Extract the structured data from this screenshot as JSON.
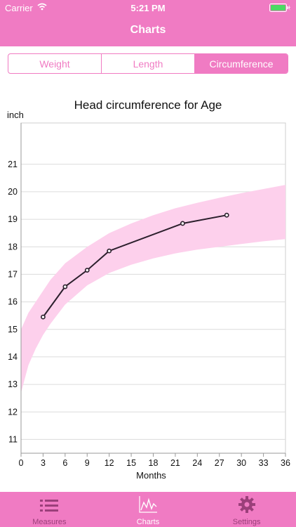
{
  "status_bar": {
    "carrier": "Carrier",
    "time": "5:21 PM"
  },
  "nav": {
    "title": "Charts"
  },
  "segments": [
    {
      "label": "Weight",
      "active": false
    },
    {
      "label": "Length",
      "active": false
    },
    {
      "label": "Circumference",
      "active": true
    }
  ],
  "chart_data": {
    "type": "line",
    "title": "Head circumference for Age",
    "ylabel": "inch",
    "xlabel": "Months",
    "xlim": [
      0,
      36
    ],
    "ylim": [
      10.5,
      22.5
    ],
    "xticks": [
      0,
      3,
      6,
      9,
      12,
      15,
      18,
      21,
      24,
      27,
      30,
      33,
      36
    ],
    "yticks": [
      11,
      12,
      13,
      14,
      15,
      16,
      17,
      18,
      19,
      20,
      21
    ],
    "grid": true,
    "band": {
      "x": [
        0,
        1,
        2,
        3,
        4,
        6,
        9,
        12,
        15,
        18,
        21,
        24,
        27,
        30,
        33,
        36
      ],
      "upper": [
        15.0,
        15.6,
        16.0,
        16.4,
        16.8,
        17.4,
        18.0,
        18.5,
        18.85,
        19.15,
        19.4,
        19.6,
        19.78,
        19.95,
        20.1,
        20.25
      ],
      "lower": [
        12.7,
        13.7,
        14.3,
        14.8,
        15.2,
        15.9,
        16.6,
        17.05,
        17.35,
        17.58,
        17.76,
        17.9,
        18.0,
        18.1,
        18.2,
        18.28
      ],
      "color": "#fdd0ec"
    },
    "series": [
      {
        "x": [
          3,
          6,
          9,
          12,
          22,
          28
        ],
        "values": [
          15.45,
          16.55,
          17.15,
          17.85,
          18.85,
          19.15
        ],
        "color": "#2b1f2c"
      }
    ]
  },
  "tabs": [
    {
      "label": "Measures",
      "icon": "list-icon",
      "active": false
    },
    {
      "label": "Charts",
      "icon": "chart-icon",
      "active": true
    },
    {
      "label": "Settings",
      "icon": "gear-icon",
      "active": false
    }
  ],
  "colors": {
    "accent": "#f07bc3",
    "tab_inactive": "#9b3f7a",
    "band": "#fdd0ec",
    "line": "#2b1f2c"
  }
}
